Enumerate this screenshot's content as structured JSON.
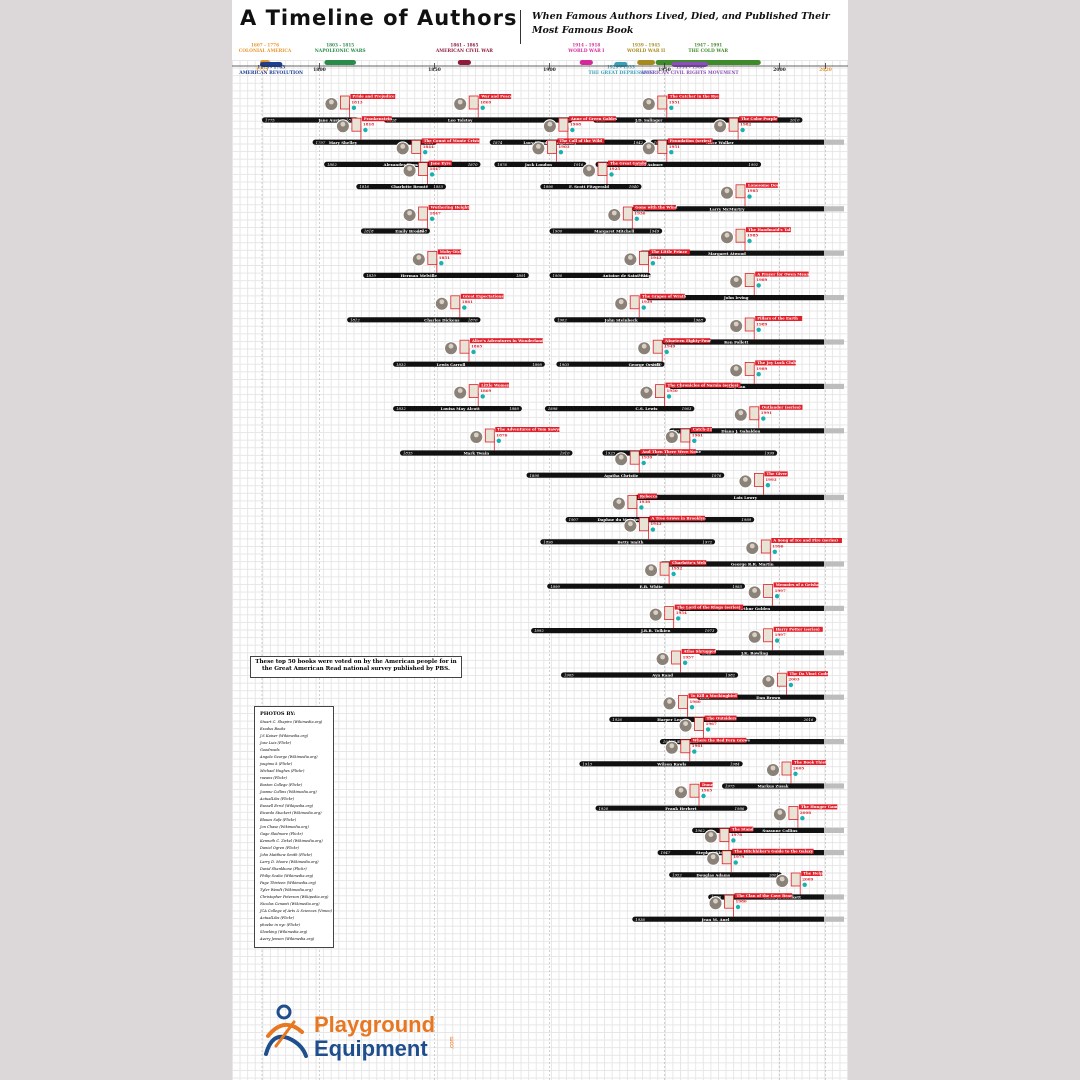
{
  "header": {
    "title": "A Timeline of Authors",
    "subtitle": "When Famous Authors Lived, Died, and Published Their Most Famous Book"
  },
  "note": "These top 50 books were voted on by the American people for in the Great American Read national survey published by PBS.",
  "credits": {
    "heading": "PHOTOS BY:",
    "items": [
      "Stuart C. Shapiro (Wikimedia.org)",
      "Exodus Books",
      "J.S Kaiser (Wikimedia.org)",
      "Jose Luis (Flickr)",
      "Goodreads",
      "Angela George (Wikimedia.org)",
      "jsugimo k (Flickr)",
      "Michael Hughes (Flickr)",
      "raeans (Flickr)",
      "Boston College (Flickr)",
      "Joanne Collins (Wikimedia.org)",
      "ActualLibs (Flickr)",
      "Russell Errol (Wikipedia.org)",
      "Ricardo Stuckert (Wikimedia.org)",
      "Blaues Sofa (Flickr)",
      "Jon Chase (Wikimedia.org)",
      "Gage Skidmore (Flickr)",
      "Kenneth C. Zirkel (Wikimedia.org)",
      "Daniel Ogren (Flickr)",
      "John Matthew Smith (Flickr)",
      "Larry D. Moore (Wikimedia.org)",
      "David Shankbone (Flickr)",
      "Philip Scalia (Wikimedia.org)",
      "Page Thirteen (Wikimedia.org)",
      "Tyler Wendt (Wikimedia.org)",
      "Christopher Peterson (Wikipedia.org)",
      "Nicolas Cenanti (Wikimedia.org)",
      "JCA College of Arts & Sciences (Vimeo)",
      "ActualLibs (Flickr)",
      "phoebe in nyc (Flickr)",
      "Slowking (Wikimedia.org)",
      "Avery Jensen (Wikimedia.org)"
    ]
  },
  "logo": {
    "line1": "Playground",
    "line2": "Equipment",
    "suffix": ".com"
  },
  "colors": {
    "bar": "#111111",
    "book_label": "#e0202a",
    "axis": "#333333",
    "accent_teal": "#19b0b0"
  },
  "chart_data": {
    "type": "timeline",
    "xlim": [
      1775,
      2020
    ],
    "ticks": [
      {
        "year": 1775,
        "label": "1775"
      },
      {
        "year": 1800,
        "label": "1800"
      },
      {
        "year": 1850,
        "label": "1850"
      },
      {
        "year": 1900,
        "label": "1900"
      },
      {
        "year": 1950,
        "label": "1950"
      },
      {
        "year": 2000,
        "label": "2000"
      },
      {
        "year": 2020,
        "label": "2020"
      }
    ],
    "eras": [
      {
        "name": "COLONIAL AMERICA",
        "range": "1607 - 1776",
        "start": 1775,
        "end": 1776,
        "color": "#e8952c",
        "row": 0
      },
      {
        "name": "AMERICAN REVOLUTION",
        "range": "1775 - 1783",
        "start": 1775,
        "end": 1783,
        "color": "#1c3f94",
        "row": 1
      },
      {
        "name": "NAPOLEONIC WARS",
        "range": "1803 - 1815",
        "start": 1803,
        "end": 1815,
        "color": "#2a8a4a",
        "row": 0
      },
      {
        "name": "AMERICAN CIVIL WAR",
        "range": "1861 - 1865",
        "start": 1861,
        "end": 1865,
        "color": "#8e1b3c",
        "row": 0
      },
      {
        "name": "WORLD WAR I",
        "range": "1914 - 1918",
        "start": 1914,
        "end": 1918,
        "color": "#d6289b",
        "row": 0
      },
      {
        "name": "THE GREAT DEPRESSION",
        "range": "1929 - 1933",
        "start": 1929,
        "end": 1933,
        "color": "#3aa0b8",
        "row": 1
      },
      {
        "name": "WORLD WAR II",
        "range": "1939 - 1945",
        "start": 1939,
        "end": 1945,
        "color": "#a68a1e",
        "row": 0
      },
      {
        "name": "THE COLD WAR",
        "range": "1947 - 1991",
        "start": 1947,
        "end": 1991,
        "color": "#3f8a2a",
        "row": 0
      },
      {
        "name": "AMERICAN CIVIL RIGHTS MOVEMENT",
        "range": "1954 - 1968",
        "start": 1954,
        "end": 1968,
        "color": "#8a52b8",
        "row": 1
      }
    ],
    "authors": [
      {
        "name": "Jane Austen",
        "born": 1775,
        "died": 1817,
        "book": "Pride and Prejudice",
        "published": 1813,
        "row": 0
      },
      {
        "name": "Leo Tolstoy",
        "born": 1828,
        "died": 1910,
        "book": "War and Peace",
        "published": 1869,
        "row": 0
      },
      {
        "name": "J.D. Salinger",
        "born": 1919,
        "died": 2010,
        "book": "The Catcher in the Rye",
        "published": 1951,
        "row": 0
      },
      {
        "name": "Mary Shelley",
        "born": 1797,
        "died": 1851,
        "book": "Frankenstein",
        "published": 1818,
        "row": 1
      },
      {
        "name": "Lucy Maud Montgomery",
        "born": 1874,
        "died": 1942,
        "book": "Anne of Green Gables",
        "published": 1908,
        "row": 1
      },
      {
        "name": "Alice Walker",
        "born": 1944,
        "died": null,
        "book": "The Color Purple",
        "published": 1982,
        "row": 1
      },
      {
        "name": "Alexander Dumas",
        "born": 1802,
        "died": 1870,
        "book": "The Count of Monte Cristo",
        "published": 1844,
        "row": 2
      },
      {
        "name": "Jack London",
        "born": 1876,
        "died": 1916,
        "book": "The Call of the Wild",
        "published": 1903,
        "row": 2
      },
      {
        "name": "Isaac Asimov",
        "born": 1920,
        "died": 1992,
        "book": "Foundation (series)",
        "published": 1951,
        "row": 2
      },
      {
        "name": "Charlotte Brontë",
        "born": 1816,
        "died": 1855,
        "book": "Jane Eyre",
        "published": 1847,
        "row": 3
      },
      {
        "name": "F. Scott Fitzgerald",
        "born": 1896,
        "died": 1940,
        "book": "The Great Gatsby",
        "published": 1925,
        "row": 3
      },
      {
        "name": "Larry McMurtry",
        "born": 1936,
        "died": null,
        "book": "Lonesome Dove",
        "published": 1985,
        "row": 4
      },
      {
        "name": "Emily Brontë",
        "born": 1818,
        "died": 1848,
        "book": "Wuthering Heights",
        "published": 1847,
        "row": 5
      },
      {
        "name": "Margaret Mitchell",
        "born": 1900,
        "died": 1949,
        "book": "Gone with the Wind",
        "published": 1936,
        "row": 5
      },
      {
        "name": "Margaret Atwood",
        "born": 1939,
        "died": null,
        "book": "The Handmaid's Tale",
        "published": 1985,
        "row": 6
      },
      {
        "name": "Herman Melville",
        "born": 1819,
        "died": 1891,
        "book": "Moby-Dick",
        "published": 1851,
        "row": 7
      },
      {
        "name": "Antoine de Saint-Exupéry",
        "born": 1900,
        "died": 1944,
        "book": "The Little Prince",
        "published": 1943,
        "row": 7
      },
      {
        "name": "John Irving",
        "born": 1942,
        "died": null,
        "book": "A Prayer for Owen Meany",
        "published": 1989,
        "row": 8
      },
      {
        "name": "Charles Dickens",
        "born": 1812,
        "died": 1870,
        "book": "Great Expectations",
        "published": 1861,
        "row": 9
      },
      {
        "name": "John Steinbeck",
        "born": 1902,
        "died": 1968,
        "book": "The Grapes of Wrath",
        "published": 1939,
        "row": 9
      },
      {
        "name": "Ken Follett",
        "born": 1949,
        "died": null,
        "book": "Pillars of the Earth",
        "published": 1989,
        "row": 10
      },
      {
        "name": "Lewis Carroll",
        "born": 1832,
        "died": 1898,
        "book": "Alice's Adventures in Wonderland",
        "published": 1865,
        "row": 11
      },
      {
        "name": "George Orwell",
        "born": 1903,
        "died": 1950,
        "book": "Nineteen Eighty-Four",
        "published": 1949,
        "row": 11
      },
      {
        "name": "Amy Tan",
        "born": 1952,
        "died": null,
        "book": "The Joy Luck Club",
        "published": 1989,
        "row": 12
      },
      {
        "name": "Louisa May Alcott",
        "born": 1832,
        "died": 1888,
        "book": "Little Women",
        "published": 1869,
        "row": 13
      },
      {
        "name": "C.S. Lewis",
        "born": 1898,
        "died": 1963,
        "book": "The Chronicles of Narnia (series)",
        "published": 1950,
        "row": 13
      },
      {
        "name": "Diana J. Gabaldon",
        "born": 1952,
        "died": null,
        "book": "Outlander (series)",
        "published": 1991,
        "row": 14
      },
      {
        "name": "Mark Twain",
        "born": 1835,
        "died": 1910,
        "book": "The Adventures of Tom Sawyer",
        "published": 1876,
        "row": 15
      },
      {
        "name": "Joseph Heller",
        "born": 1923,
        "died": 1999,
        "book": "Catch-22",
        "published": 1961,
        "row": 15
      },
      {
        "name": "Agatha Christie",
        "born": 1890,
        "died": 1976,
        "book": "And Then There Were None",
        "published": 1939,
        "row": 16
      },
      {
        "name": "Lois Lowry",
        "born": 1937,
        "died": null,
        "book": "The Giver",
        "published": 1993,
        "row": 17
      },
      {
        "name": "Daphne du Maurier",
        "born": 1907,
        "died": 1989,
        "book": "Rebecca",
        "published": 1938,
        "row": 18
      },
      {
        "name": "Betty Smith",
        "born": 1896,
        "died": 1972,
        "book": "A Tree Grows in Brooklyn",
        "published": 1943,
        "row": 19
      },
      {
        "name": "George R.R. Martin",
        "born": 1948,
        "died": null,
        "book": "A Song of Ice and Fire (series)",
        "published": 1996,
        "row": 20
      },
      {
        "name": "E.B. White",
        "born": 1899,
        "died": 1985,
        "book": "Charlotte's Web",
        "published": 1952,
        "row": 21
      },
      {
        "name": "Arthur Golden",
        "born": 1956,
        "died": null,
        "book": "Memoirs of a Geisha",
        "published": 1997,
        "row": 22
      },
      {
        "name": "J.R.R. Tolkien",
        "born": 1892,
        "died": 1973,
        "book": "The Lord of the Rings (series)",
        "published": 1954,
        "row": 23
      },
      {
        "name": "J.K. Rowling",
        "born": 1965,
        "died": null,
        "book": "Harry Potter (series)",
        "published": 1997,
        "row": 24
      },
      {
        "name": "Ayn Rand",
        "born": 1905,
        "died": 1982,
        "book": "Atlas Shrugged",
        "published": 1957,
        "row": 25
      },
      {
        "name": "Dan Brown",
        "born": 1964,
        "died": null,
        "book": "The Da Vinci Code",
        "published": 2003,
        "row": 26
      },
      {
        "name": "Harper Lee",
        "born": 1926,
        "died": 2016,
        "book": "To Kill a Mockingbird",
        "published": 1960,
        "row": 27
      },
      {
        "name": "S.E. Hinton",
        "born": 1948,
        "died": null,
        "book": "The Outsiders",
        "published": 1967,
        "row": 28
      },
      {
        "name": "Wilson Rawls",
        "born": 1913,
        "died": 1984,
        "book": "Where the Red Fern Grows",
        "published": 1961,
        "row": 29
      },
      {
        "name": "Markus Zusak",
        "born": 1975,
        "died": null,
        "book": "The Book Thief",
        "published": 2005,
        "row": 30
      },
      {
        "name": "Frank Herbert",
        "born": 1920,
        "died": 1986,
        "book": "Dune",
        "published": 1965,
        "row": 31
      },
      {
        "name": "Suzanne Collins",
        "born": 1962,
        "died": null,
        "book": "The Hunger Games",
        "published": 2008,
        "row": 32
      },
      {
        "name": "Stephen King",
        "born": 1947,
        "died": null,
        "book": "The Stand",
        "published": 1978,
        "row": 33
      },
      {
        "name": "Douglas Adams",
        "born": 1952,
        "died": 2001,
        "book": "The Hitchhiker's Guide to the Galaxy",
        "published": 1979,
        "row": 34
      },
      {
        "name": "Kathryn Stockett",
        "born": 1969,
        "died": null,
        "book": "The Help",
        "published": 2009,
        "row": 35
      },
      {
        "name": "Jean M. Auel",
        "born": 1936,
        "died": null,
        "book": "The Clan of the Cave Bear",
        "published": 1980,
        "row": 36
      }
    ]
  }
}
